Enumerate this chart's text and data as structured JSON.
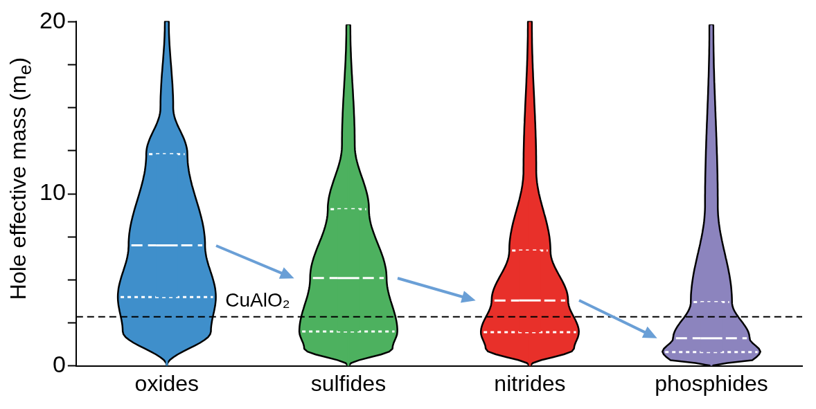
{
  "chart_data": {
    "type": "box",
    "ylabel": "Hole effective mass (m$_{e}$)",
    "categories": [
      "oxides",
      "sulfides",
      "nitrides",
      "phosphides"
    ],
    "colors": [
      "#3f8fcb",
      "#4db15f",
      "#e8302a",
      "#8c84be"
    ],
    "boxes": [
      {
        "low": 0,
        "q1": 4.0,
        "median": 7.0,
        "q3": 12.3,
        "high": 20
      },
      {
        "low": 0,
        "q1": 2.0,
        "median": 5.1,
        "q3": 9.1,
        "high": 19.8
      },
      {
        "low": 0,
        "q1": 1.95,
        "median": 3.8,
        "q3": 6.7,
        "high": 20
      },
      {
        "low": 0,
        "q1": 0.8,
        "median": 1.6,
        "q3": 3.7,
        "high": 19.8
      }
    ],
    "ylim": [
      0,
      20
    ],
    "yticks": [
      0,
      {
        "value": 2.5,
        "label": null
      },
      {
        "value": 5,
        "label": null
      },
      {
        "value": 7.5,
        "label": null
      },
      10,
      {
        "value": 12.5,
        "label": null
      },
      {
        "value": 15,
        "label": null
      },
      {
        "value": 17.5,
        "label": null
      },
      20
    ],
    "ref_lines": [
      {
        "axis": "y",
        "value": 2.85,
        "label": "CuAlO₂",
        "color": "#000000",
        "line_style": "dashed"
      }
    ],
    "grid": false,
    "legend": false
  }
}
